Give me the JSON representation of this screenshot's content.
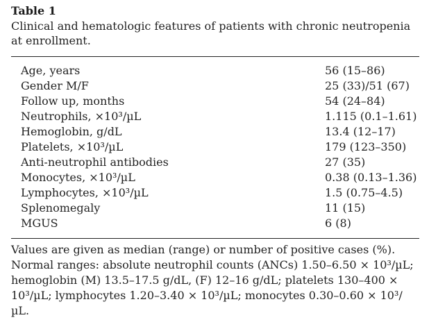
{
  "table": {
    "label": "Table 1",
    "caption": "Clinical and hematologic features of patients with chronic neutropenia at enrollment.",
    "rows": [
      {
        "feature": "Age, years",
        "value": "56 (15–86)"
      },
      {
        "feature": "Gender M/F",
        "value": "25 (33)/51 (67)"
      },
      {
        "feature": "Follow up, months",
        "value": "54 (24–84)"
      },
      {
        "feature": "Neutrophils, ×10³/µL",
        "value": "1.115 (0.1–1.61)"
      },
      {
        "feature": "Hemoglobin, g/dL",
        "value": "13.4 (12–17)"
      },
      {
        "feature": "Platelets, ×10³/µL",
        "value": "179 (123–350)"
      },
      {
        "feature": "Anti-neutrophil antibodies",
        "value": "27 (35)"
      },
      {
        "feature": "Monocytes, ×10³/µL",
        "value": "0.38 (0.13–1.36)"
      },
      {
        "feature": "Lymphocytes, ×10³/µL",
        "value": "1.5 (0.75–4.5)"
      },
      {
        "feature": "Splenomegaly",
        "value": "11 (15)"
      },
      {
        "feature": "MGUS",
        "value": "6 (8)"
      }
    ],
    "footnotes": [
      "Values are given as median (range) or number of positive cases (%).",
      "Normal ranges: absolute neutrophil counts (ANCs) 1.50–6.50 × 10³/µL; hemoglobin (M) 13.5–17.5 g/dL, (F) 12–16 g/dL; platelets 130–400 × 10³/µL; lymphocytes 1.20–3.40 × 10³/µL; monocytes 0.30–0.60 × 10³/µL."
    ]
  }
}
